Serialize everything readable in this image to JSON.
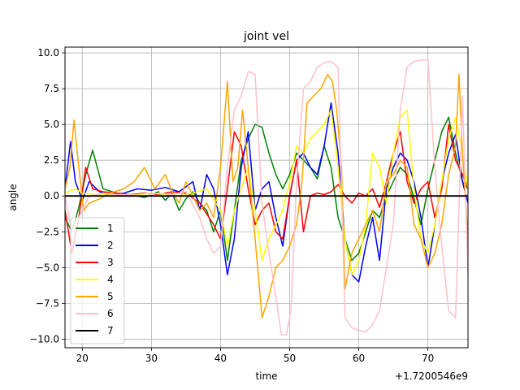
{
  "chart_data": {
    "type": "line",
    "title": "joint vel",
    "xlabel": "time",
    "ylabel": "angle",
    "x_offset_label": "+1.7200546e9",
    "xlim": [
      17.5,
      75.8
    ],
    "ylim": [
      -10.6,
      10.4
    ],
    "xticks": [
      20,
      30,
      40,
      50,
      60,
      70
    ],
    "yticks": [
      -10.0,
      -7.5,
      -5.0,
      -2.5,
      0.0,
      2.5,
      5.0,
      7.5,
      10.0
    ],
    "ytick_labels": [
      "−10.0",
      "−7.5",
      "−5.0",
      "−2.5",
      "0.0",
      "2.5",
      "5.0",
      "7.5",
      "10.0"
    ],
    "grid": true,
    "legend_position": "lower-left",
    "series": [
      {
        "name": "1",
        "color": "#008000",
        "x": [
          17.5,
          18.5,
          19.5,
          20.5,
          21.5,
          23,
          25,
          27,
          29,
          31,
          32,
          33,
          34,
          35,
          36,
          37,
          38,
          39,
          40,
          41,
          42,
          43,
          44,
          45,
          46,
          47,
          48,
          49,
          50,
          51,
          52,
          53,
          54,
          55,
          56,
          57,
          58,
          59,
          60,
          61,
          62,
          63,
          64,
          65,
          66,
          67,
          68,
          69,
          70,
          71,
          72,
          73,
          74,
          75,
          75.8
        ],
        "y": [
          -1.5,
          -2.5,
          -0.8,
          1.5,
          3.2,
          0.5,
          0.2,
          0.1,
          -0.1,
          0.3,
          -0.3,
          0.2,
          -1.0,
          -0.2,
          0.3,
          -0.5,
          -1.0,
          -2.5,
          -1.0,
          -4.5,
          -1.0,
          2.5,
          4.0,
          5.0,
          4.8,
          3.0,
          1.5,
          0.5,
          1.5,
          3.0,
          2.5,
          2.0,
          1.2,
          3.5,
          2.0,
          -1.5,
          -3.0,
          -4.5,
          -4.0,
          -2.5,
          -1.0,
          -1.5,
          0.0,
          1.0,
          2.0,
          1.5,
          -0.2,
          -2.0,
          0.5,
          2.5,
          4.5,
          5.5,
          3.0,
          1.0,
          0.5
        ]
      },
      {
        "name": "2",
        "color": "#0000ff",
        "x": [
          17.5,
          18.3,
          19,
          20,
          21,
          22.5,
          24,
          26,
          28,
          30,
          32,
          34,
          36,
          37,
          38,
          39,
          40,
          41,
          42,
          43,
          44,
          45,
          46,
          47,
          48,
          49,
          50,
          51,
          52,
          53,
          54,
          55,
          56,
          57,
          58,
          59,
          60,
          61,
          62,
          63,
          64,
          65,
          66,
          67,
          68,
          69,
          70,
          71,
          72,
          73,
          74,
          75,
          75.8
        ],
        "y": [
          0.5,
          3.8,
          1.0,
          -0.3,
          1.0,
          0.3,
          0.1,
          0.2,
          0.5,
          0.4,
          0.6,
          0.3,
          1.0,
          -1.0,
          1.5,
          0.5,
          -2.0,
          -5.5,
          -3.0,
          2.0,
          4.5,
          -1.0,
          0.5,
          1.0,
          -1.5,
          -3.5,
          0.0,
          2.5,
          3.0,
          2.0,
          1.5,
          3.5,
          6.5,
          3.0,
          -3.0,
          -5.5,
          -6.0,
          -3.5,
          -1.5,
          -4.5,
          0.5,
          2.0,
          3.0,
          2.5,
          1.0,
          -1.5,
          -5.0,
          -2.0,
          1.0,
          3.0,
          4.3,
          1.0,
          -0.5
        ]
      },
      {
        "name": "3",
        "color": "#ff0000",
        "x": [
          17.5,
          18.5,
          19.5,
          20.5,
          21.5,
          23,
          25,
          27,
          29,
          31,
          33,
          35,
          37,
          39,
          40,
          41,
          42,
          43,
          44,
          45,
          46,
          47,
          48,
          49,
          50,
          51,
          52,
          53,
          54,
          55,
          56,
          57,
          58,
          59,
          60,
          61,
          62,
          63,
          64,
          65,
          66,
          67,
          68,
          69,
          70,
          71,
          72,
          73,
          74,
          75,
          75.8
        ],
        "y": [
          -1.0,
          -4.0,
          -1.5,
          2.0,
          0.5,
          0.3,
          0.2,
          0.1,
          0.2,
          0.1,
          0.3,
          0.2,
          -0.5,
          -2.0,
          -3.0,
          0.5,
          4.5,
          3.5,
          0.5,
          -2.0,
          -1.0,
          -0.5,
          -2.5,
          -3.0,
          0.0,
          2.5,
          -2.5,
          0.0,
          0.2,
          0.1,
          0.3,
          0.8,
          0.0,
          -0.5,
          0.2,
          0.0,
          0.5,
          -0.8,
          1.0,
          3.0,
          4.5,
          1.0,
          -0.5,
          0.5,
          1.0,
          -1.5,
          0.5,
          5.0,
          2.5,
          1.5,
          0.5
        ]
      },
      {
        "name": "4",
        "color": "#ffff00",
        "x": [
          17.5,
          19,
          20,
          22,
          24,
          26,
          28,
          30,
          32,
          34,
          36,
          38,
          40,
          41,
          42,
          43,
          44,
          45,
          46,
          47,
          48,
          49,
          50,
          51,
          52,
          53,
          54,
          55,
          56,
          57,
          58,
          59,
          60,
          61,
          62,
          63,
          64,
          65,
          66,
          67,
          68,
          69,
          70,
          71,
          72,
          73,
          74,
          75,
          75.8
        ],
        "y": [
          0.2,
          0.5,
          0.2,
          0.1,
          0.1,
          0.0,
          0.1,
          0.2,
          0.1,
          0.0,
          0.2,
          0.5,
          -1.0,
          -3.5,
          -1.0,
          0.5,
          2.0,
          -1.0,
          -4.5,
          -3.0,
          -2.0,
          -1.0,
          1.0,
          3.5,
          3.0,
          4.0,
          4.5,
          5.0,
          6.0,
          2.0,
          -3.0,
          -5.5,
          -4.5,
          -2.0,
          3.0,
          2.0,
          -0.5,
          3.0,
          5.5,
          6.0,
          0.5,
          -3.0,
          -4.0,
          -2.0,
          1.0,
          4.0,
          5.5,
          3.0,
          0.5
        ]
      },
      {
        "name": "5",
        "color": "#ffa500",
        "x": [
          17.5,
          18.2,
          18.8,
          19.5,
          20.2,
          21,
          22.5,
          24,
          26,
          27.5,
          29,
          30.5,
          32,
          33,
          34,
          35,
          36,
          37,
          38,
          39,
          40,
          41,
          41.8,
          42.5,
          43.2,
          44,
          45,
          46,
          47,
          48,
          49,
          50,
          51,
          51.8,
          52.5,
          53.5,
          54.5,
          55.5,
          56.2,
          56.8,
          57.5,
          58,
          59,
          60,
          61,
          62,
          63,
          64,
          65,
          66,
          67,
          68,
          69,
          70,
          71,
          72,
          73,
          74,
          74.5,
          75,
          75.8
        ],
        "y": [
          0.5,
          2.0,
          5.3,
          2.0,
          -1.0,
          -0.5,
          -0.2,
          0.2,
          0.5,
          1.0,
          2.0,
          0.5,
          1.5,
          0.3,
          -0.5,
          1.0,
          0.0,
          -1.0,
          -0.5,
          -1.5,
          2.0,
          8.0,
          1.0,
          2.0,
          6.0,
          2.0,
          -3.0,
          -8.5,
          -7.0,
          -5.0,
          -4.5,
          -3.5,
          -2.0,
          1.0,
          6.5,
          7.0,
          7.5,
          8.5,
          8.0,
          6.0,
          2.0,
          -6.5,
          -4.0,
          -3.0,
          -2.0,
          -1.0,
          -2.5,
          1.0,
          1.5,
          2.5,
          2.0,
          -2.0,
          -3.0,
          -5.0,
          -4.0,
          -2.0,
          1.5,
          3.5,
          8.5,
          3.0,
          -3.0
        ]
      },
      {
        "name": "6",
        "color": "#ffc0cb",
        "x": [
          17.5,
          18.5,
          19.5,
          21,
          23,
          25,
          27,
          29,
          31,
          33,
          35,
          37,
          38,
          39,
          40,
          41,
          42,
          43,
          44,
          45,
          46,
          47,
          48,
          48.8,
          49.5,
          50.2,
          51,
          52,
          53,
          54,
          55,
          56,
          57,
          58,
          59,
          60,
          61,
          62,
          63,
          64,
          65,
          66,
          67,
          68,
          69,
          70,
          71,
          72,
          73,
          74,
          75,
          75.8
        ],
        "y": [
          0.0,
          -2.5,
          -1.5,
          0.0,
          0.2,
          0.1,
          0.1,
          0.0,
          0.2,
          0.1,
          0.3,
          -1.5,
          -3.0,
          -4.0,
          -3.5,
          2.0,
          6.0,
          7.0,
          8.7,
          8.5,
          -0.5,
          -4.0,
          -7.0,
          -9.7,
          -9.7,
          -8.0,
          1.0,
          7.5,
          8.0,
          9.0,
          9.3,
          9.4,
          9.0,
          -8.5,
          -9.2,
          -9.4,
          -9.5,
          -9.0,
          -8.0,
          -5.0,
          -2.0,
          6.0,
          9.0,
          9.4,
          9.5,
          9.5,
          2.0,
          -3.5,
          -8.0,
          -8.5,
          7.0,
          -5.5
        ]
      },
      {
        "name": "7",
        "color": "#000000",
        "x": [
          17.5,
          75.8
        ],
        "y": [
          0.0,
          0.0
        ]
      }
    ]
  }
}
